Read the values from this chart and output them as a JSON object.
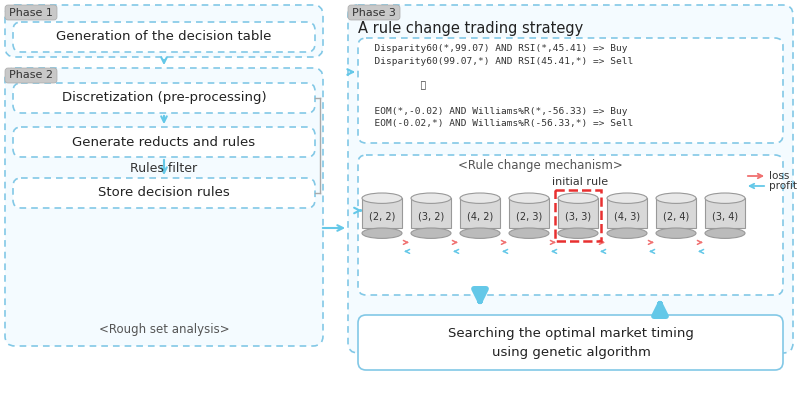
{
  "bg_color": "#ffffff",
  "phase1_label": "Phase 1",
  "phase2_label": "Phase 2",
  "phase3_label": "Phase 3",
  "box1_text": "Generation of the decision table",
  "box2_text": "Discretization (pre-processing)",
  "box3_text": "Generate reducts and rules",
  "box4_text": "Store decision rules",
  "rules_filter_text": "Rules filter",
  "rough_set_text": "<Rough set analysis>",
  "phase3_title": "A rule change trading strategy",
  "rules_text_line1": "  Disparity60(*,99.07) AND RSI(*,45.41) => Buy",
  "rules_text_line2": "  Disparity60(99.07,*) AND RSI(45.41,*) => Sell",
  "rules_text_dots": "⋮",
  "rules_text_line3": "  EOM(*,-0.02) AND Williams%R(*,-56.33) => Buy",
  "rules_text_line4": "  EOM(-0.02,*) AND Williams%R(-56.33,*) => Sell",
  "rule_change_text": "<Rule change mechanism>",
  "initial_rule_text": "initial rule",
  "cylinders": [
    "(2, 2)",
    "(3, 2)",
    "(4, 2)",
    "(2, 3)",
    "(3, 3)",
    "(4, 3)",
    "(2, 4)",
    "(3, 4)"
  ],
  "initial_rule_idx": 4,
  "loss_text": "loss",
  "profit_text": "profit",
  "ga_text": "Searching the optimal market timing\nusing genetic algorithm",
  "arrow_blue": "#64c8e8",
  "arrow_red": "#f07070",
  "box_border": "#82c8e6",
  "highlight_red": "#e83030",
  "tab_bg": "#c8c8c8",
  "box_bg": "#f4fbff",
  "phase3_bg": "#f4fbff"
}
